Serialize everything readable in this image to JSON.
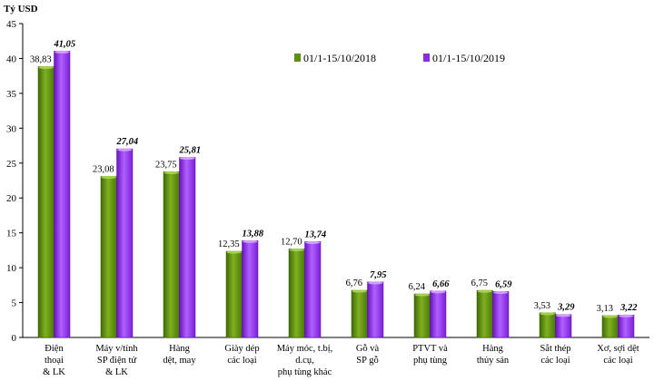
{
  "chart_data": {
    "type": "bar",
    "ylabel": "Tỷ USD",
    "ylim": [
      0,
      45
    ],
    "yticks": [
      0,
      5,
      10,
      15,
      20,
      25,
      30,
      35,
      40,
      45
    ],
    "grid": false,
    "legend_position": "top-right",
    "categories": [
      [
        "Điện",
        "thoại",
        "& LK"
      ],
      [
        "Máy v/tính",
        "SP điện tử",
        "& LK"
      ],
      [
        "Hàng",
        "dệt, may"
      ],
      [
        "Giày dép",
        "các loại"
      ],
      [
        "Máy móc, t.bị,",
        "d.cụ,",
        "phụ tùng khác"
      ],
      [
        "Gỗ và",
        "SP gỗ"
      ],
      [
        "PTVT và",
        "phụ tùng"
      ],
      [
        "Hàng",
        "thủy sản"
      ],
      [
        "Sắt thép",
        "các loại"
      ],
      [
        "Xơ, sợi dệt",
        "các loại"
      ]
    ],
    "series": [
      {
        "name": "01/1-15/10/2018",
        "color": "#5f8f10",
        "values": [
          38.83,
          23.08,
          23.75,
          12.35,
          12.7,
          6.76,
          6.24,
          6.75,
          3.53,
          3.13
        ],
        "labels": [
          "38,83",
          "23,08",
          "23,75",
          "12,35",
          "12,70",
          "6,76",
          "6,24",
          "6,75",
          "3,53",
          "3,13"
        ]
      },
      {
        "name": "01/1-15/10/2019",
        "color": "#8a2be2",
        "values": [
          41.05,
          27.04,
          25.81,
          13.88,
          13.74,
          7.95,
          6.66,
          6.59,
          3.29,
          3.22
        ],
        "labels": [
          "41,05",
          "27,04",
          "25,81",
          "13,88",
          "13,74",
          "7,95",
          "6,66",
          "6,59",
          "3,29",
          "3,22"
        ]
      }
    ]
  }
}
